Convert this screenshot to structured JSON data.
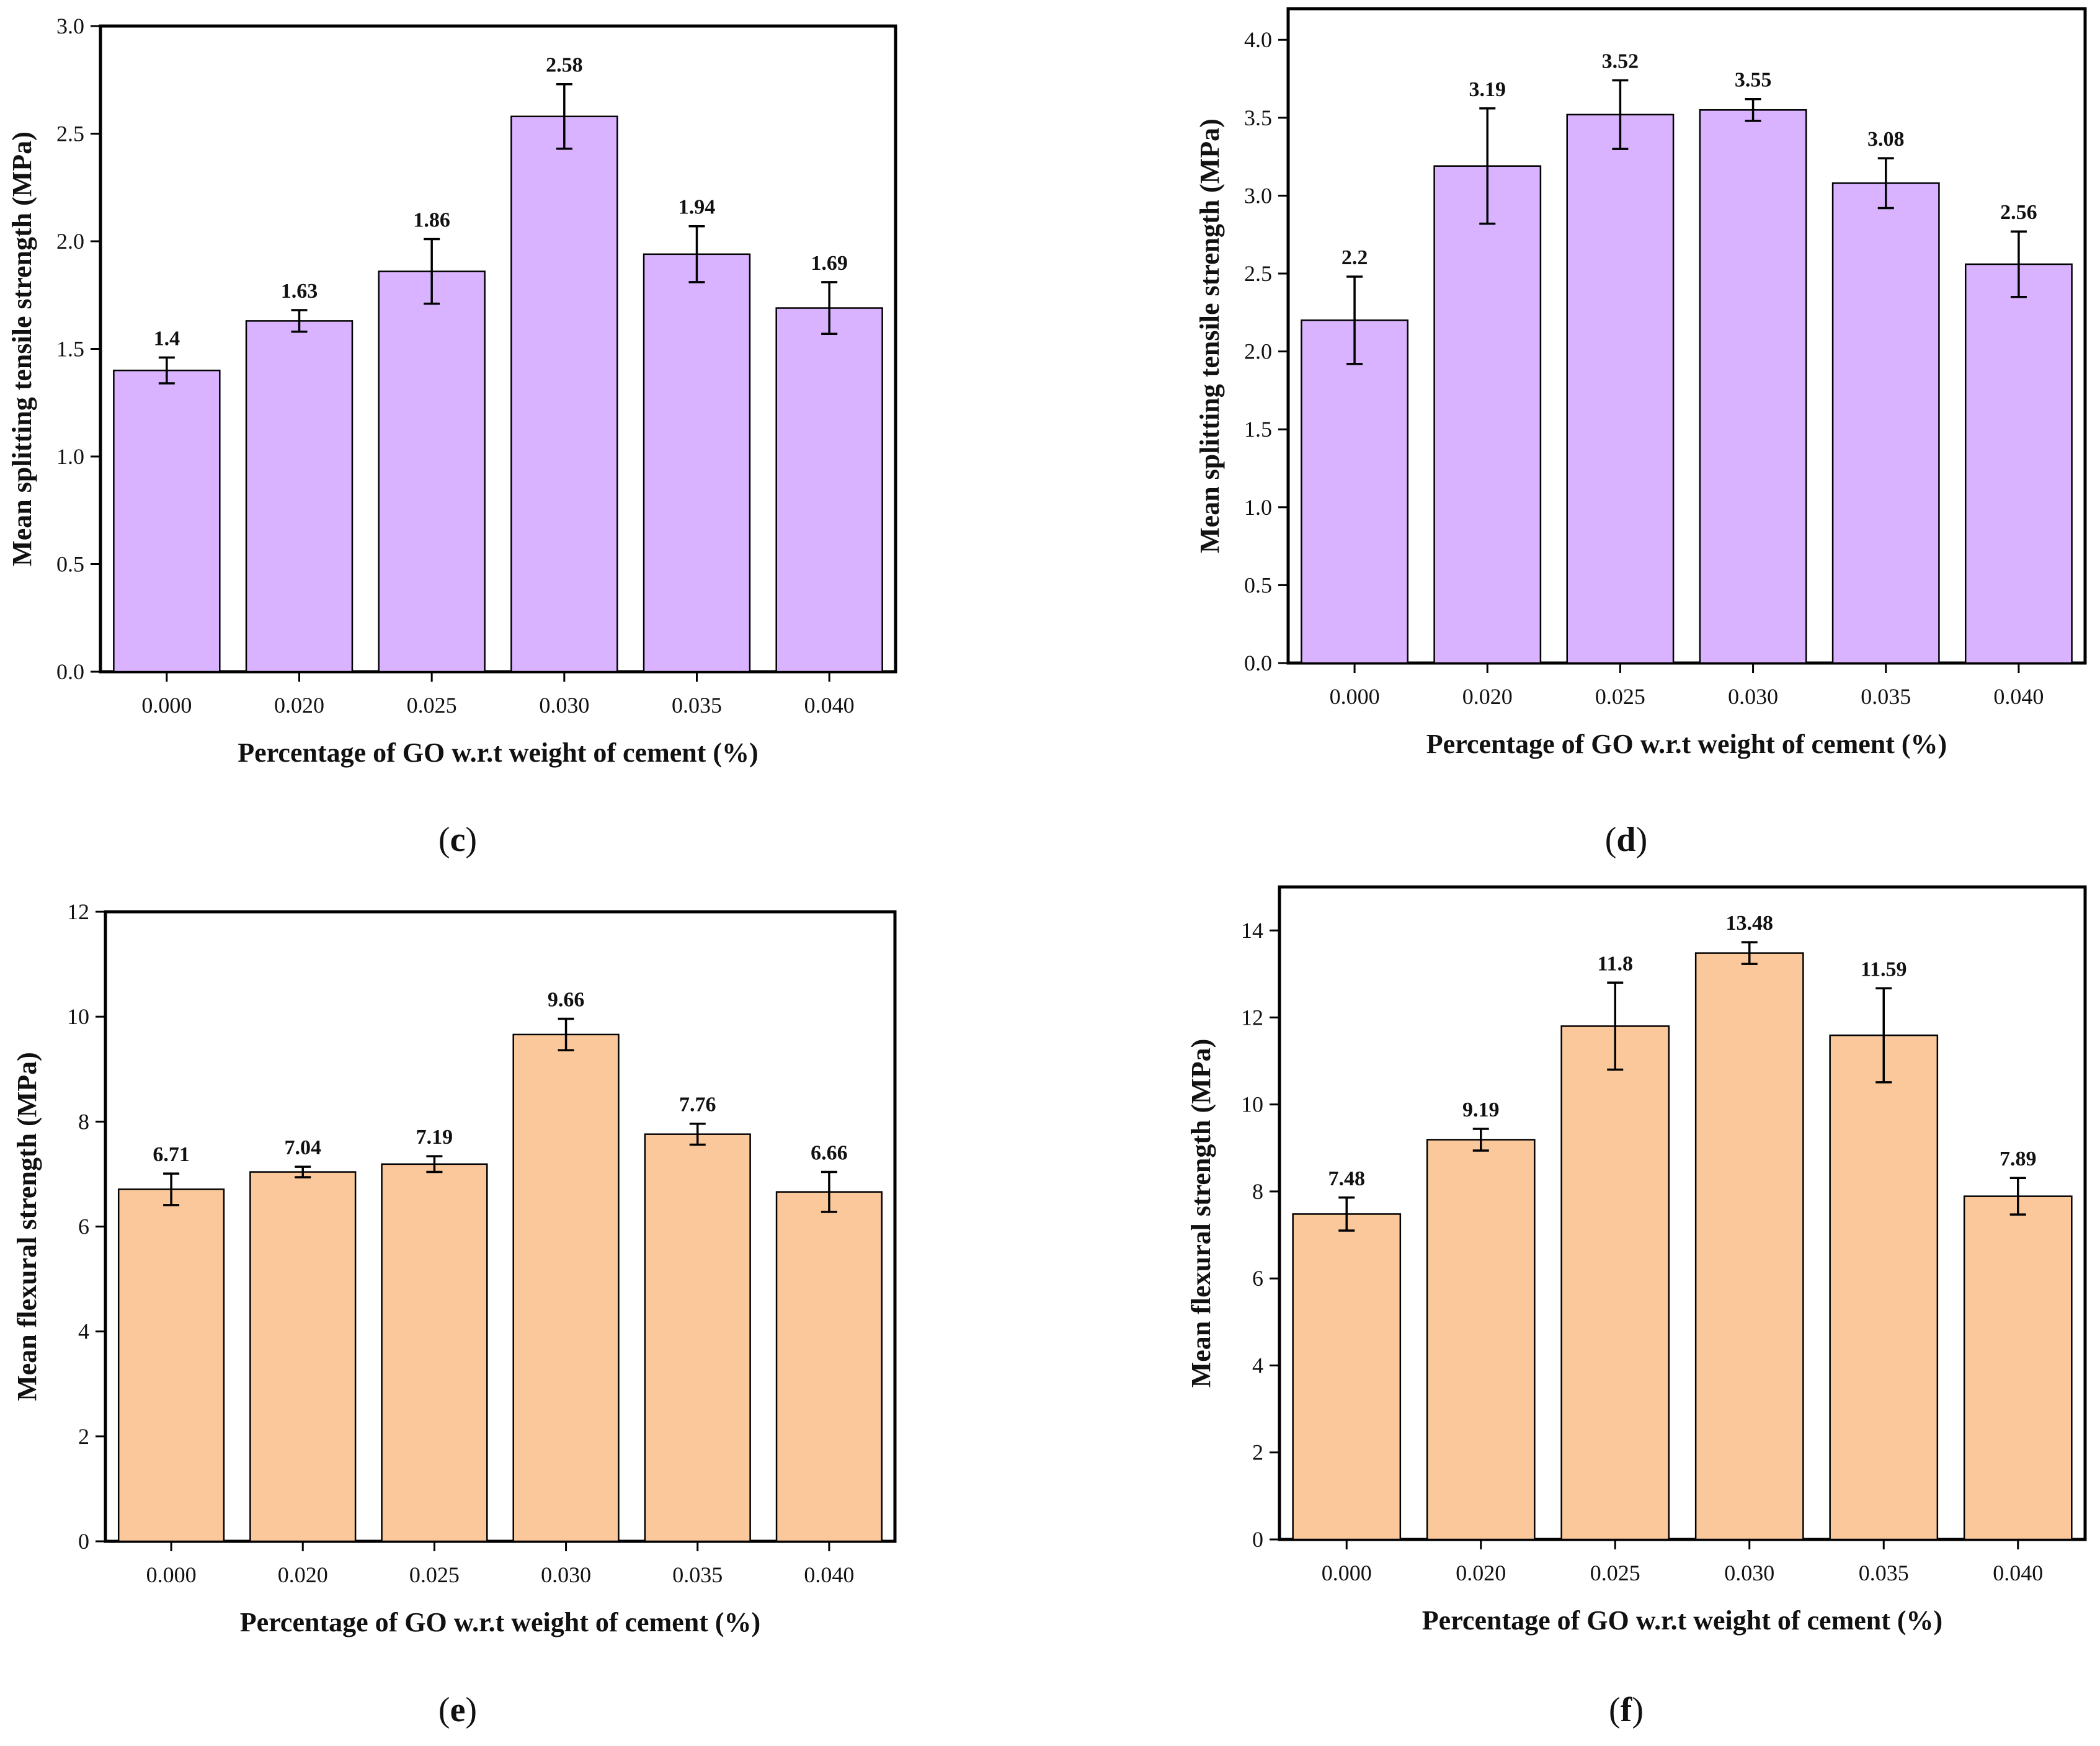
{
  "chart_data": [
    {
      "panel": "c",
      "type": "bar",
      "categories": [
        "0.000",
        "0.020",
        "0.025",
        "0.030",
        "0.035",
        "0.040"
      ],
      "values": [
        1.4,
        1.63,
        1.86,
        2.58,
        1.94,
        1.69
      ],
      "value_labels": [
        "1.4",
        "1.63",
        "1.86",
        "2.58",
        "1.94",
        "1.69"
      ],
      "errors": [
        0.06,
        0.05,
        0.15,
        0.15,
        0.13,
        0.12
      ],
      "ylim": [
        0,
        3.0
      ],
      "yticks": [
        0.0,
        0.5,
        1.0,
        1.5,
        2.0,
        2.5,
        3.0
      ],
      "ytick_labels": [
        "0.0",
        "0.5",
        "1.0",
        "1.5",
        "2.0",
        "2.5",
        "3.0"
      ],
      "xlabel": "Percentage of GO w.r.t weight of cement (%)",
      "ylabel": "Mean splitting tensile strength (MPa)",
      "bar_color": "#d9b3ff",
      "caption_prefix": "(",
      "caption_letter": "c",
      "caption_suffix": ")"
    },
    {
      "panel": "d",
      "type": "bar",
      "categories": [
        "0.000",
        "0.020",
        "0.025",
        "0.030",
        "0.035",
        "0.040"
      ],
      "values": [
        2.2,
        3.19,
        3.52,
        3.55,
        3.08,
        2.56
      ],
      "value_labels": [
        "2.2",
        "3.19",
        "3.52",
        "3.55",
        "3.08",
        "2.56"
      ],
      "errors": [
        0.28,
        0.37,
        0.22,
        0.07,
        0.16,
        0.21
      ],
      "ylim": [
        0,
        4.2
      ],
      "yticks": [
        0.0,
        0.5,
        1.0,
        1.5,
        2.0,
        2.5,
        3.0,
        3.5,
        4.0
      ],
      "ytick_labels": [
        "0.0",
        "0.5",
        "1.0",
        "1.5",
        "2.0",
        "2.5",
        "3.0",
        "3.5",
        "4.0"
      ],
      "xlabel": "Percentage of GO w.r.t weight of cement (%)",
      "ylabel": "Mean splitting tensile strength (MPa)",
      "bar_color": "#d9b3ff",
      "caption_prefix": "(",
      "caption_letter": "d",
      "caption_suffix": ")"
    },
    {
      "panel": "e",
      "type": "bar",
      "categories": [
        "0.000",
        "0.020",
        "0.025",
        "0.030",
        "0.035",
        "0.040"
      ],
      "values": [
        6.71,
        7.04,
        7.19,
        9.66,
        7.76,
        6.66
      ],
      "value_labels": [
        "6.71",
        "7.04",
        "7.19",
        "9.66",
        "7.76",
        "6.66"
      ],
      "errors": [
        0.3,
        0.1,
        0.15,
        0.3,
        0.2,
        0.38
      ],
      "ylim": [
        0,
        12
      ],
      "yticks": [
        0,
        2,
        4,
        6,
        8,
        10,
        12
      ],
      "ytick_labels": [
        "0",
        "2",
        "4",
        "6",
        "8",
        "10",
        "12"
      ],
      "xlabel": "Percentage of GO w.r.t weight of cement (%)",
      "ylabel": "Mean flexural strength (MPa)",
      "bar_color": "#fac89a",
      "caption_prefix": "(",
      "caption_letter": "e",
      "caption_suffix": ")"
    },
    {
      "panel": "f",
      "type": "bar",
      "categories": [
        "0.000",
        "0.020",
        "0.025",
        "0.030",
        "0.035",
        "0.040"
      ],
      "values": [
        7.48,
        9.19,
        11.8,
        13.48,
        11.59,
        7.89
      ],
      "value_labels": [
        "7.48",
        "9.19",
        "11.8",
        "13.48",
        "11.59",
        "7.89"
      ],
      "errors": [
        0.38,
        0.25,
        1.0,
        0.25,
        1.08,
        0.42
      ],
      "ylim": [
        0,
        15.0
      ],
      "yticks": [
        0,
        2,
        4,
        6,
        8,
        10,
        12,
        14
      ],
      "ytick_labels": [
        "0",
        "2",
        "4",
        "6",
        "8",
        "10",
        "12",
        "14"
      ],
      "xlabel": "Percentage of GO w.r.t weight of cement (%)",
      "ylabel": "Mean flexural strength (MPa)",
      "bar_color": "#fac89a",
      "caption_prefix": "(",
      "caption_letter": "f",
      "caption_suffix": ")"
    }
  ]
}
